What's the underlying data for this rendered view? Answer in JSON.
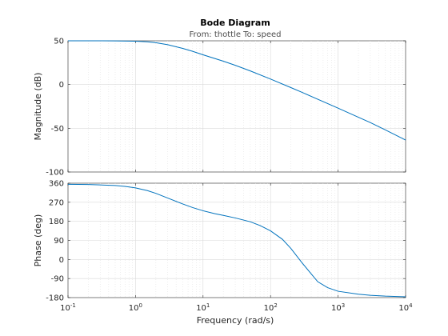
{
  "chart_data": {
    "type": "line",
    "title": "Bode Diagram",
    "subtitle": "From: thottle  To: speed",
    "xlabel": "Frequency  (rad/s)",
    "x_scale": "log",
    "xlim": [
      0.1,
      10000
    ],
    "x_ticks": [
      "10-1",
      "100",
      "101",
      "102",
      "103",
      "104"
    ],
    "grid": true,
    "color": "#0072bd",
    "panels": [
      {
        "ylabel": "Magnitude (dB)",
        "ylim": [
          -100,
          50
        ],
        "y_ticks": [
          "50",
          "0",
          "-50",
          "-100"
        ],
        "y_tick_values": [
          50,
          0,
          -50,
          -100
        ],
        "series": [
          {
            "x": [
              0.1,
              0.3,
              0.5,
              1,
              1.5,
              2,
              3,
              5,
              7,
              10,
              20,
              30,
              50,
              100,
              200,
              300,
              500,
              1000,
              2000,
              3000,
              5000,
              10000
            ],
            "values": [
              50,
              50,
              49.9,
              49.5,
              48.8,
              47.8,
              45.5,
              41.3,
              38,
              34,
              26.7,
              22,
              15.6,
              6.3,
              -3.5,
              -9.3,
              -16.8,
              -27,
              -37.4,
              -43.5,
              -51.8,
              -63.5
            ]
          }
        ]
      },
      {
        "ylabel": "Phase (deg)",
        "ylim": [
          -180,
          360
        ],
        "y_ticks": [
          "360",
          "270",
          "180",
          "90",
          "0",
          "-90",
          "-180"
        ],
        "y_tick_values": [
          360,
          270,
          180,
          90,
          0,
          -90,
          -180
        ],
        "series": [
          {
            "x": [
              0.1,
              0.2,
              0.3,
              0.5,
              0.7,
              1,
              1.5,
              2,
              3,
              5,
              7,
              10,
              15,
              20,
              30,
              50,
              70,
              100,
              150,
              200,
              300,
              500,
              700,
              1000,
              2000,
              3000,
              5000,
              10000
            ],
            "values": [
              355,
              354,
              352,
              349,
              345,
              338,
              325,
              312,
              290,
              262,
              245,
              230,
              216,
              208,
              196,
              178,
              160,
              135,
              95,
              52,
              -20,
              -105,
              -133,
              -150,
              -164,
              -169,
              -173,
              -176
            ]
          }
        ]
      }
    ]
  }
}
